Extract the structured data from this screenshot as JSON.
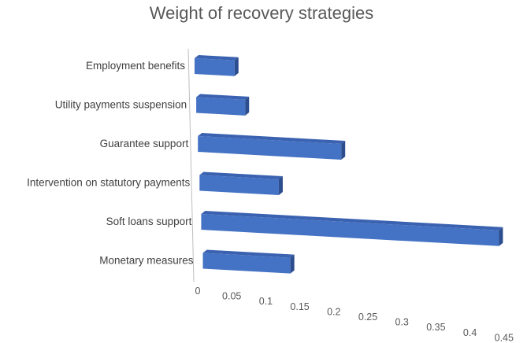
{
  "chart_data": {
    "type": "bar",
    "orientation": "horizontal",
    "style": "3d",
    "title": "Weight of recovery  strategies",
    "categories": [
      "Employment benefits",
      "Utility payments suspension",
      "Guarantee support",
      "Intervention on statutory payments",
      "Soft loans support",
      "Monetary measures"
    ],
    "values": [
      0.058,
      0.071,
      0.208,
      0.115,
      0.432,
      0.127
    ],
    "x_ticks": [
      "0",
      "0.05",
      "0.1",
      "0.15",
      "0.2",
      "0.25",
      "0.3",
      "0.35",
      "0.4",
      "0.45"
    ],
    "xlim": [
      0,
      0.45
    ],
    "grid": false,
    "legend": "none",
    "colors": {
      "bar_front": "#4472C4",
      "bar_top": "#3A62B0",
      "bar_side": "#2C4D8E",
      "axis": "#BFBFBF"
    }
  }
}
